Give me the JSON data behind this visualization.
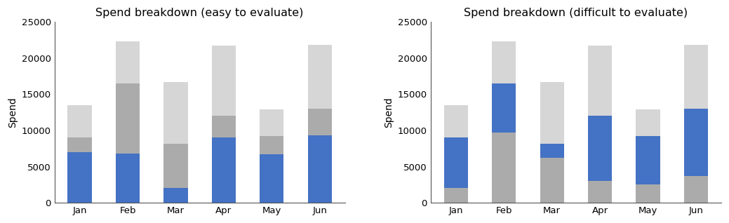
{
  "months": [
    "Jan",
    "Feb",
    "Mar",
    "Apr",
    "May",
    "Jun"
  ],
  "blue": [
    7000,
    6800,
    2000,
    9000,
    6700,
    9300
  ],
  "mid_gray": [
    2000,
    9700,
    6200,
    3000,
    2500,
    3700
  ],
  "light_gray": [
    4500,
    5800,
    8500,
    9700,
    3700,
    8800
  ],
  "color_blue": "#4472C4",
  "color_mid_gray": "#ABABAB",
  "color_light_gray": "#D6D6D6",
  "title_left": "Spend breakdown (easy to evaluate)",
  "title_right": "Spend breakdown (difficult to evaluate)",
  "ylabel": "Spend",
  "ylim": [
    0,
    25000
  ],
  "yticks": [
    0,
    5000,
    10000,
    15000,
    20000,
    25000
  ],
  "title_fontsize": 11.5,
  "axis_fontsize": 10,
  "tick_fontsize": 9.5,
  "bar_width": 0.5
}
